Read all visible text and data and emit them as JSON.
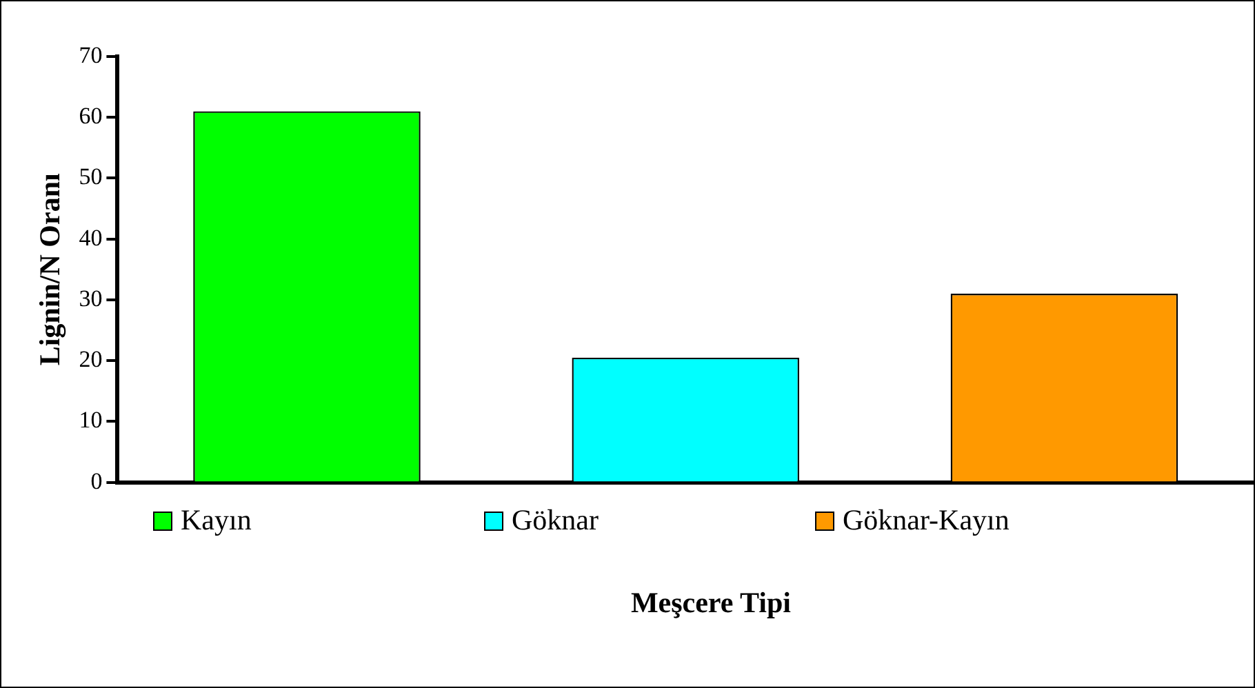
{
  "chart_data": {
    "type": "bar",
    "categories": [
      null,
      null,
      null
    ],
    "xlabel": "Meşcere Tipi",
    "ylabel": "Lignin/N Oranı",
    "ylim": [
      0,
      70
    ],
    "yticks": [
      0,
      10,
      20,
      30,
      40,
      50,
      60,
      70
    ],
    "grid": false,
    "legend": "bottom",
    "series": [
      {
        "name": "Kayın",
        "color": "#00ff00",
        "values": [
          61,
          null,
          null
        ]
      },
      {
        "name": "Göknar",
        "color": "#00ffff",
        "values": [
          null,
          20.5,
          null
        ]
      },
      {
        "name": "Göknar-Kayın",
        "color": "#ff9900",
        "values": [
          null,
          null,
          31
        ]
      }
    ]
  }
}
